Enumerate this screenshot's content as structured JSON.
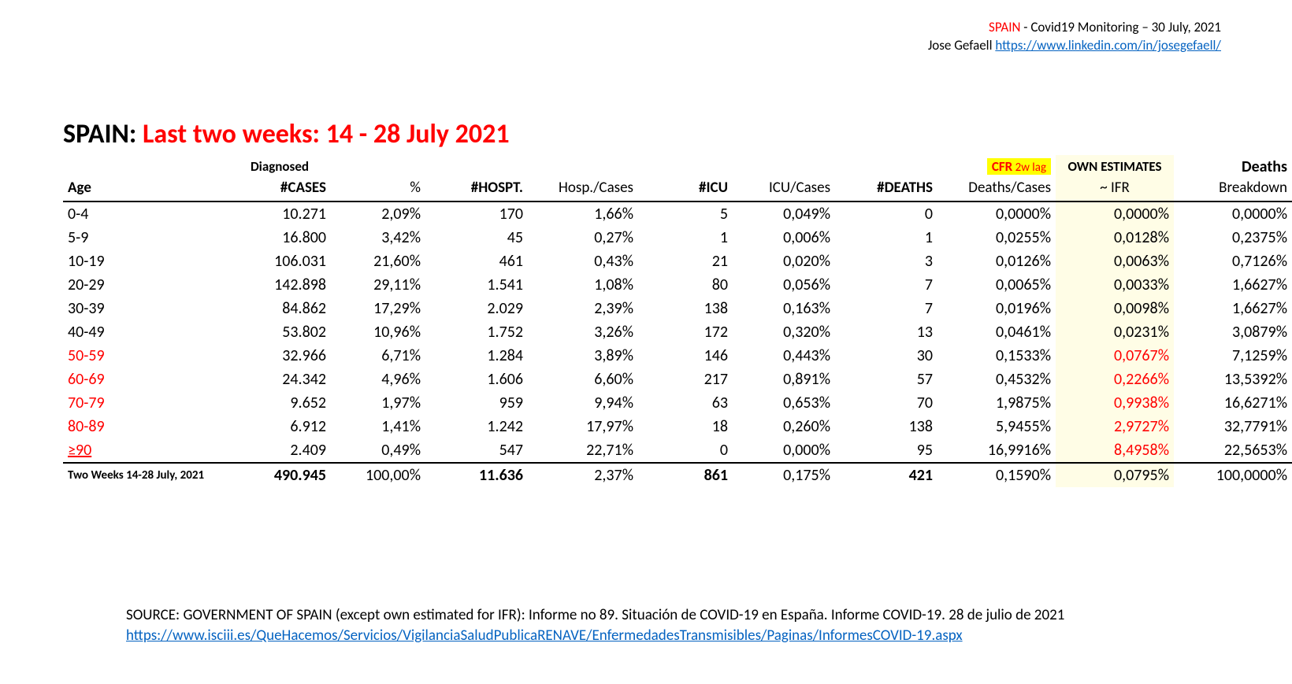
{
  "header": {
    "spain": "SPAIN",
    "dash": " - Covid19 Monitoring – 30 July, 2021",
    "author": "Jose Gefaell ",
    "link_text": "https://www.linkedin.com/in/josegefaell/",
    "link_href": "https://www.linkedin.com/in/josegefaell/"
  },
  "title": {
    "left": "SPAIN: ",
    "right": "Last two weeks: 14 - 28 July 2021"
  },
  "table": {
    "super_headers": {
      "diagnosed": "Diagnosed",
      "cfr": "CFR",
      "cfr_lag": " 2w lag",
      "own": "OWN ESTIMATES",
      "deaths": "Deaths"
    },
    "headers": {
      "age": "Age",
      "cases": "#CASES",
      "pct": "%",
      "hosp": "#HOSPT.",
      "hc": "Hosp./Cases",
      "icu": "#ICU",
      "ic": "ICU/Cases",
      "dth": "#DEATHS",
      "cfr": "Deaths/Cases",
      "ifr": "~ IFR",
      "brk": "Breakdown"
    },
    "rows": [
      {
        "age": "0-4",
        "cases": "10.271",
        "pct": "2,09%",
        "hosp": "170",
        "hc": "1,66%",
        "icu": "5",
        "ic": "0,049%",
        "dth": "0",
        "cfr": "0,0000%",
        "ifr": "0,0000%",
        "brk": "0,0000%",
        "redage": false,
        "ifr_red": false
      },
      {
        "age": "5-9",
        "cases": "16.800",
        "pct": "3,42%",
        "hosp": "45",
        "hc": "0,27%",
        "icu": "1",
        "ic": "0,006%",
        "dth": "1",
        "cfr": "0,0255%",
        "ifr": "0,0128%",
        "brk": "0,2375%",
        "redage": false,
        "ifr_red": false
      },
      {
        "age": "10-19",
        "cases": "106.031",
        "pct": "21,60%",
        "hosp": "461",
        "hc": "0,43%",
        "icu": "21",
        "ic": "0,020%",
        "dth": "3",
        "cfr": "0,0126%",
        "ifr": "0,0063%",
        "brk": "0,7126%",
        "redage": false,
        "ifr_red": false
      },
      {
        "age": "20-29",
        "cases": "142.898",
        "pct": "29,11%",
        "hosp": "1.541",
        "hc": "1,08%",
        "icu": "80",
        "ic": "0,056%",
        "dth": "7",
        "cfr": "0,0065%",
        "ifr": "0,0033%",
        "brk": "1,6627%",
        "redage": false,
        "ifr_red": false
      },
      {
        "age": "30-39",
        "cases": "84.862",
        "pct": "17,29%",
        "hosp": "2.029",
        "hc": "2,39%",
        "icu": "138",
        "ic": "0,163%",
        "dth": "7",
        "cfr": "0,0196%",
        "ifr": "0,0098%",
        "brk": "1,6627%",
        "redage": false,
        "ifr_red": false
      },
      {
        "age": "40-49",
        "cases": "53.802",
        "pct": "10,96%",
        "hosp": "1.752",
        "hc": "3,26%",
        "icu": "172",
        "ic": "0,320%",
        "dth": "13",
        "cfr": "0,0461%",
        "ifr": "0,0231%",
        "brk": "3,0879%",
        "redage": false,
        "ifr_red": false
      },
      {
        "age": "50-59",
        "cases": "32.966",
        "pct": "6,71%",
        "hosp": "1.284",
        "hc": "3,89%",
        "icu": "146",
        "ic": "0,443%",
        "dth": "30",
        "cfr": "0,1533%",
        "ifr": "0,0767%",
        "brk": "7,1259%",
        "redage": true,
        "ifr_red": true
      },
      {
        "age": "60-69",
        "cases": "24.342",
        "pct": "4,96%",
        "hosp": "1.606",
        "hc": "6,60%",
        "icu": "217",
        "ic": "0,891%",
        "dth": "57",
        "cfr": "0,4532%",
        "ifr": "0,2266%",
        "brk": "13,5392%",
        "redage": true,
        "ifr_red": true
      },
      {
        "age": "70-79",
        "cases": "9.652",
        "pct": "1,97%",
        "hosp": "959",
        "hc": "9,94%",
        "icu": "63",
        "ic": "0,653%",
        "dth": "70",
        "cfr": "1,9875%",
        "ifr": "0,9938%",
        "brk": "16,6271%",
        "redage": true,
        "ifr_red": true
      },
      {
        "age": "80-89",
        "cases": "6.912",
        "pct": "1,41%",
        "hosp": "1.242",
        "hc": "17,97%",
        "icu": "18",
        "ic": "0,260%",
        "dth": "138",
        "cfr": "5,9455%",
        "ifr": "2,9727%",
        "brk": "32,7791%",
        "redage": true,
        "ifr_red": true
      },
      {
        "age": "≥90",
        "cases": "2.409",
        "pct": "0,49%",
        "hosp": "547",
        "hc": "22,71%",
        "icu": "0",
        "ic": "0,000%",
        "dth": "95",
        "cfr": "16,9916%",
        "ifr": "8,4958%",
        "brk": "22,5653%",
        "redage": true,
        "ifr_red": true,
        "underline": true
      }
    ],
    "total": {
      "label": "Two Weeks 14-28 July, 2021",
      "cases": "490.945",
      "pct": "100,00%",
      "hosp": "11.636",
      "hc": "2,37%",
      "icu": "861",
      "ic": "0,175%",
      "dth": "421",
      "cfr": "0,1590%",
      "ifr": "0,0795%",
      "brk": "100,0000%"
    }
  },
  "source": {
    "line1": "SOURCE: GOVERNMENT OF SPAIN (except own estimated for IFR): Informe no 89. Situación de COVID-19 en España. Informe COVID-19. 28 de julio de 2021",
    "link_text": "https://www.isciii.es/QueHacemos/Servicios/VigilanciaSaludPublicaRENAVE/EnfermedadesTransmisibles/Paginas/InformesCOVID-19.aspx"
  }
}
